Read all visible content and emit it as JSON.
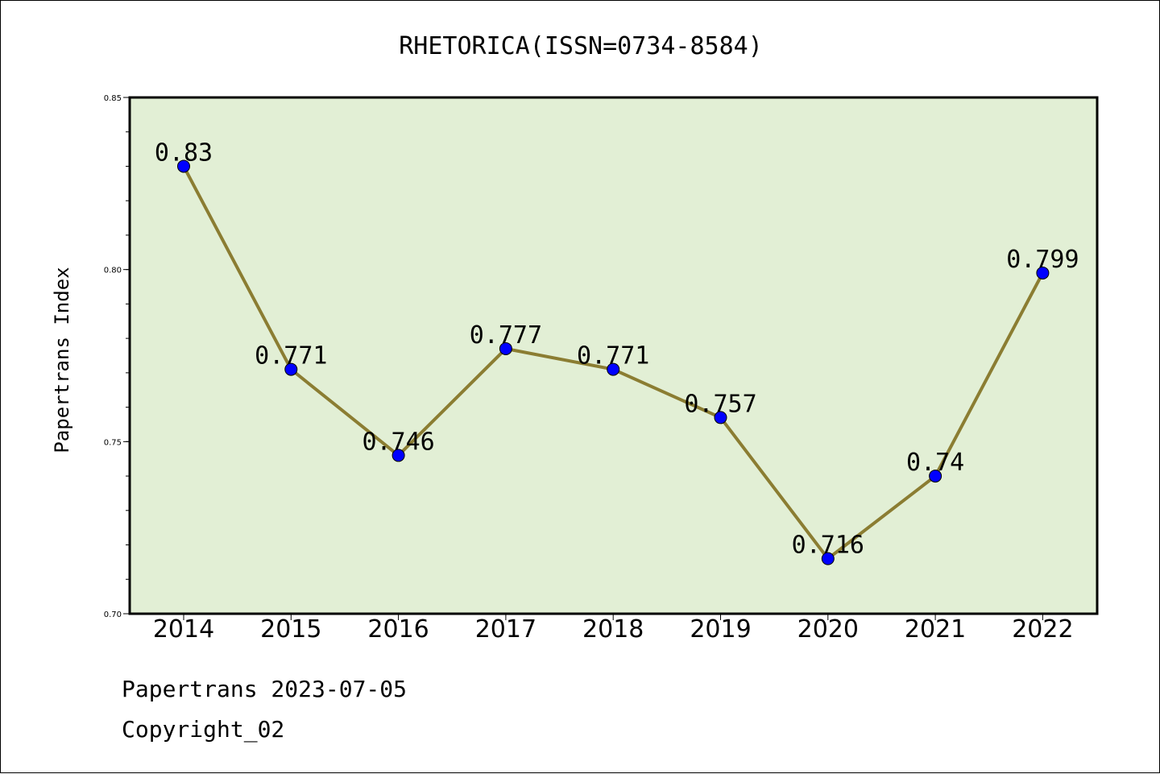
{
  "chart_data": {
    "type": "line",
    "title": "RHETORICA(ISSN=0734-8584)",
    "xlabel": "",
    "ylabel": "Papertrans Index",
    "categories": [
      "2014",
      "2015",
      "2016",
      "2017",
      "2018",
      "2019",
      "2020",
      "2021",
      "2022"
    ],
    "series": [
      {
        "values": [
          0.83,
          0.771,
          0.746,
          0.777,
          0.771,
          0.757,
          0.716,
          0.74,
          0.799
        ],
        "labels": [
          "0.83",
          "0.771",
          "0.746",
          "0.777",
          "0.771",
          "0.757",
          "0.716",
          "0.74",
          "0.799"
        ],
        "line_color": "#8b7d32",
        "marker_color": "#0000ff"
      }
    ],
    "ylim": [
      0.7,
      0.85
    ],
    "yticks": [
      0.7,
      0.75,
      0.8,
      0.85
    ],
    "ytick_labels": [
      "0.70",
      "0.75",
      "0.80",
      "0.85"
    ],
    "grid": false,
    "plot_background": "#e2efd5"
  },
  "footer": {
    "line1": "Papertrans 2023-07-05",
    "line2": "Copyright_02"
  }
}
